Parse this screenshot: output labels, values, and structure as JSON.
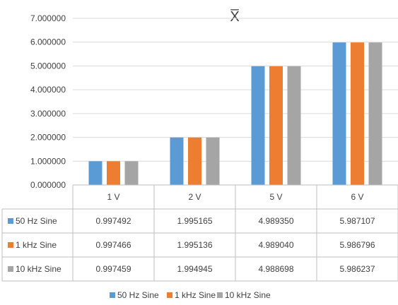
{
  "chart_data": {
    "type": "bar",
    "title": "X̅",
    "categories": [
      "1 V",
      "2 V",
      "5 V",
      "6 V"
    ],
    "ylim": [
      0,
      7
    ],
    "y_ticks": [
      "0.000000",
      "1.000000",
      "2.000000",
      "3.000000",
      "4.000000",
      "5.000000",
      "6.000000",
      "7.000000"
    ],
    "grid": true,
    "legend_position": "bottom",
    "data_table": true,
    "series": [
      {
        "name": "50 Hz Sine",
        "color": "#5B9BD5",
        "values": [
          0.997492,
          1.995165,
          4.98935,
          5.987107
        ],
        "labels": [
          "0.997492",
          "1.995165",
          "4.989350",
          "5.987107"
        ]
      },
      {
        "name": "1 kHz Sine",
        "color": "#ED7D31",
        "values": [
          0.997466,
          1.995136,
          4.98904,
          5.986796
        ],
        "labels": [
          "0.997466",
          "1.995136",
          "4.989040",
          "5.986796"
        ]
      },
      {
        "name": "10 kHz Sine",
        "color": "#A5A5A5",
        "values": [
          0.997459,
          1.994945,
          4.988698,
          5.986237
        ],
        "labels": [
          "0.997459",
          "1.994945",
          "4.988698",
          "5.986237"
        ]
      }
    ]
  }
}
